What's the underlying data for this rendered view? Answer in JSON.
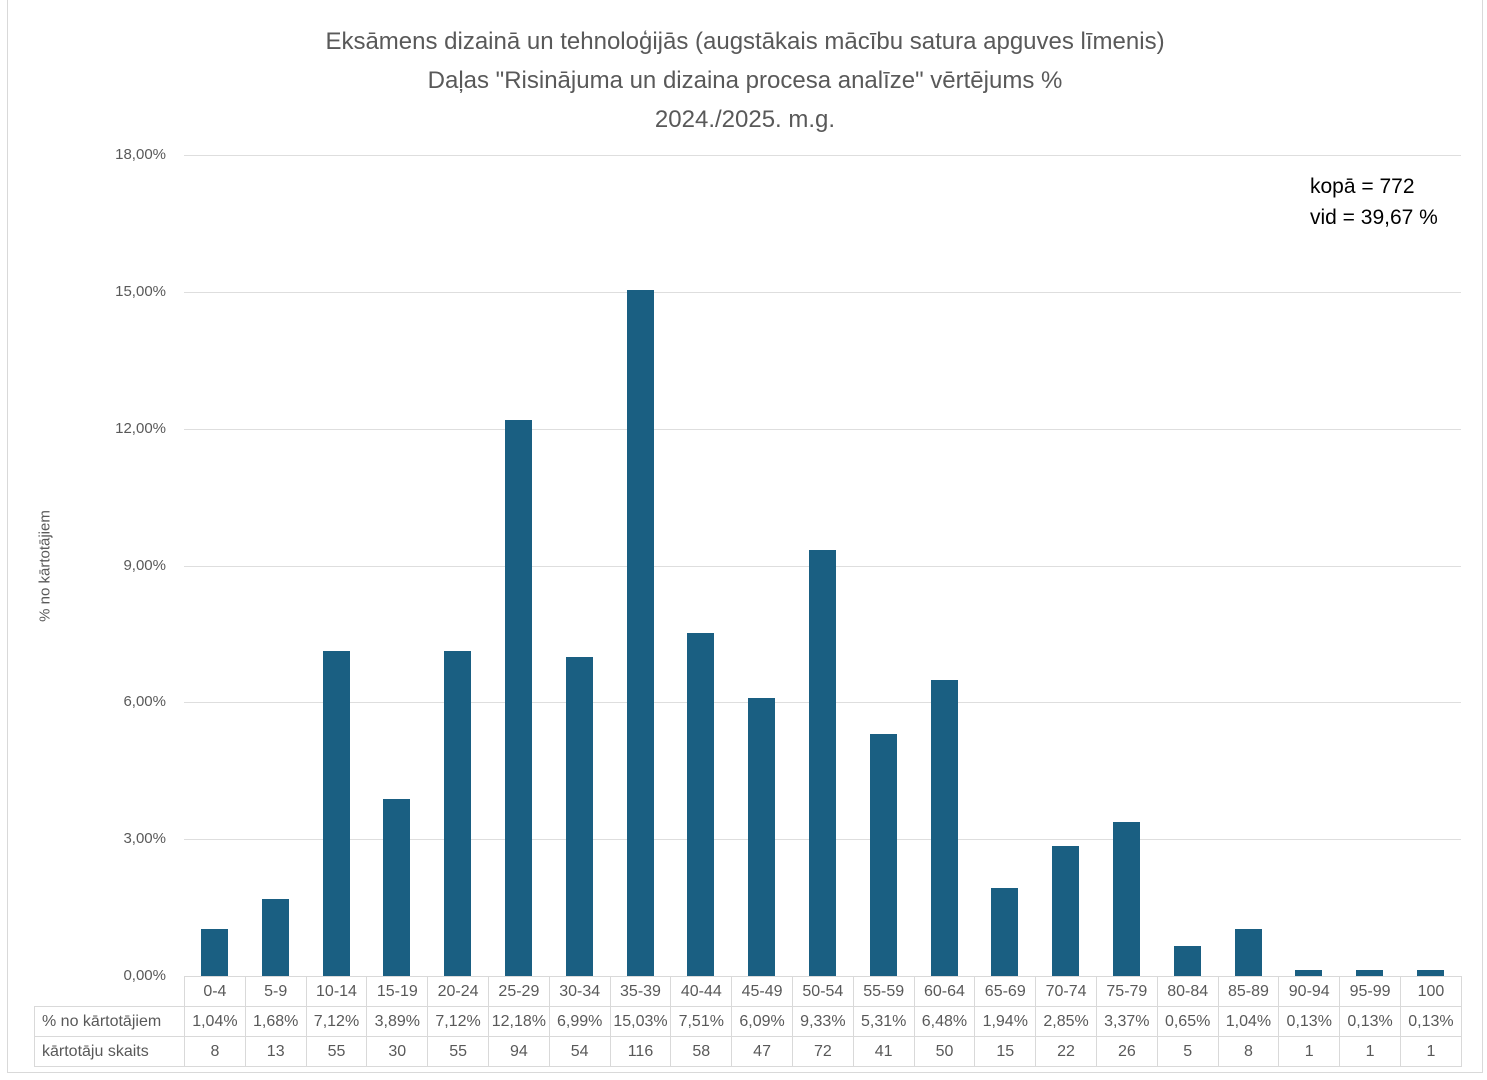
{
  "title": {
    "line1": "Eksāmens dizainā un tehnoloģijās (augstākais mācību satura apguves līmenis)",
    "line2": "Daļas \"Risinājuma un dizaina procesa analīze\" vērtējums %",
    "line3": "2024./2025. m.g."
  },
  "annotation": {
    "total": "kopā = 772",
    "average": "vid = 39,67 %"
  },
  "colors": {
    "bar": "#1A5F82",
    "gridline": "#DEDEDE",
    "axis_text": "#595959",
    "table_border": "#D9D9D9",
    "annotation_text": "#000000"
  },
  "chart_data": {
    "type": "bar",
    "title": "Eksāmens dizainā un tehnoloģijās (augstākais mācību satura apguves līmenis) Daļas \"Risinājuma un dizaina procesa analīze\" vērtējums % 2024./2025. m.g.",
    "xlabel": "",
    "ylabel": "% no kārtotājiem",
    "ylim": [
      0,
      18
    ],
    "grid": true,
    "legend": false,
    "categories": [
      "0-4",
      "5-9",
      "10-14",
      "15-19",
      "20-24",
      "25-29",
      "30-34",
      "35-39",
      "40-44",
      "45-49",
      "50-54",
      "55-59",
      "60-64",
      "65-69",
      "70-74",
      "75-79",
      "80-84",
      "85-89",
      "90-94",
      "95-99",
      "100"
    ],
    "series": [
      {
        "name": "% no kārtotājiem",
        "values": [
          1.04,
          1.68,
          7.12,
          3.89,
          7.12,
          12.18,
          6.99,
          15.03,
          7.51,
          6.09,
          9.33,
          5.31,
          6.48,
          1.94,
          2.85,
          3.37,
          0.65,
          1.04,
          0.13,
          0.13,
          0.13
        ]
      },
      {
        "name": "kārtotāju skaits",
        "values": [
          8,
          13,
          55,
          30,
          55,
          94,
          54,
          116,
          58,
          47,
          72,
          41,
          50,
          15,
          22,
          26,
          5,
          8,
          1,
          1,
          1
        ]
      }
    ],
    "yticks": [
      {
        "value": 0,
        "label": "0,00%"
      },
      {
        "value": 3,
        "label": "3,00%"
      },
      {
        "value": 6,
        "label": "6,00%"
      },
      {
        "value": 9,
        "label": "9,00%"
      },
      {
        "value": 12,
        "label": "12,00%"
      },
      {
        "value": 15,
        "label": "15,00%"
      },
      {
        "value": 18,
        "label": "18,00%"
      }
    ],
    "table": {
      "rows": [
        {
          "label": "% no kārtotājiem",
          "cells": [
            "1,04%",
            "1,68%",
            "7,12%",
            "3,89%",
            "7,12%",
            "12,18%",
            "6,99%",
            "15,03%",
            "7,51%",
            "6,09%",
            "9,33%",
            "5,31%",
            "6,48%",
            "1,94%",
            "2,85%",
            "3,37%",
            "0,65%",
            "1,04%",
            "0,13%",
            "0,13%",
            "0,13%"
          ]
        },
        {
          "label": "kārtotāju skaits",
          "cells": [
            "8",
            "13",
            "55",
            "30",
            "55",
            "94",
            "54",
            "116",
            "58",
            "47",
            "72",
            "41",
            "50",
            "15",
            "22",
            "26",
            "5",
            "8",
            "1",
            "1",
            "1"
          ]
        }
      ]
    },
    "annotations": [
      "kopā = 772",
      "vid = 39,67 %"
    ]
  }
}
